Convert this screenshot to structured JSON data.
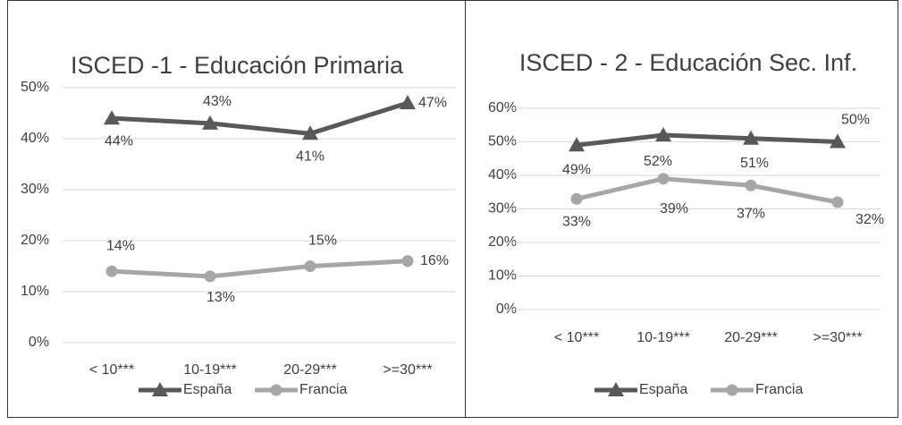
{
  "chart_data": [
    {
      "type": "line",
      "title": "ISCED -1 - Educación Primaria",
      "categories": [
        "< 10***",
        "10-19***",
        "20-29***",
        ">=30***"
      ],
      "series": [
        {
          "name": "España",
          "color": "#595959",
          "marker": "triangle",
          "values": [
            44,
            43,
            41,
            47
          ],
          "value_labels": [
            "44%",
            "43%",
            "41%",
            "47%"
          ]
        },
        {
          "name": "Francia",
          "color": "#a6a6a6",
          "marker": "circle",
          "values": [
            14,
            13,
            15,
            16
          ],
          "value_labels": [
            "14%",
            "13%",
            "15%",
            "16%"
          ]
        }
      ],
      "ylim": [
        0,
        50
      ],
      "yticks": [
        {
          "value": 0,
          "label": "0%"
        },
        {
          "value": 10,
          "label": "10%"
        },
        {
          "value": 20,
          "label": "20%"
        },
        {
          "value": 30,
          "label": "30%"
        },
        {
          "value": 40,
          "label": "40%"
        },
        {
          "value": 50,
          "label": "50%"
        }
      ],
      "grid": true,
      "legend": "bottom"
    },
    {
      "type": "line",
      "title": "ISCED - 2 - Educación Sec. Inf.",
      "categories": [
        "< 10***",
        "10-19***",
        "20-29***",
        ">=30***"
      ],
      "series": [
        {
          "name": "España",
          "color": "#595959",
          "marker": "triangle",
          "values": [
            49,
            52,
            51,
            50
          ],
          "value_labels": [
            "49%",
            "52%",
            "51%",
            "50%"
          ]
        },
        {
          "name": "Francia",
          "color": "#a6a6a6",
          "marker": "circle",
          "values": [
            33,
            39,
            37,
            32
          ],
          "value_labels": [
            "33%",
            "39%",
            "37%",
            "32%"
          ]
        }
      ],
      "ylim": [
        0,
        60
      ],
      "yticks": [
        {
          "value": 0,
          "label": "0%"
        },
        {
          "value": 10,
          "label": "10%"
        },
        {
          "value": 20,
          "label": "20%"
        },
        {
          "value": 30,
          "label": "30%"
        },
        {
          "value": 40,
          "label": "40%"
        },
        {
          "value": 50,
          "label": "50%"
        },
        {
          "value": 60,
          "label": "60%"
        }
      ],
      "grid": true,
      "legend": "bottom"
    }
  ]
}
